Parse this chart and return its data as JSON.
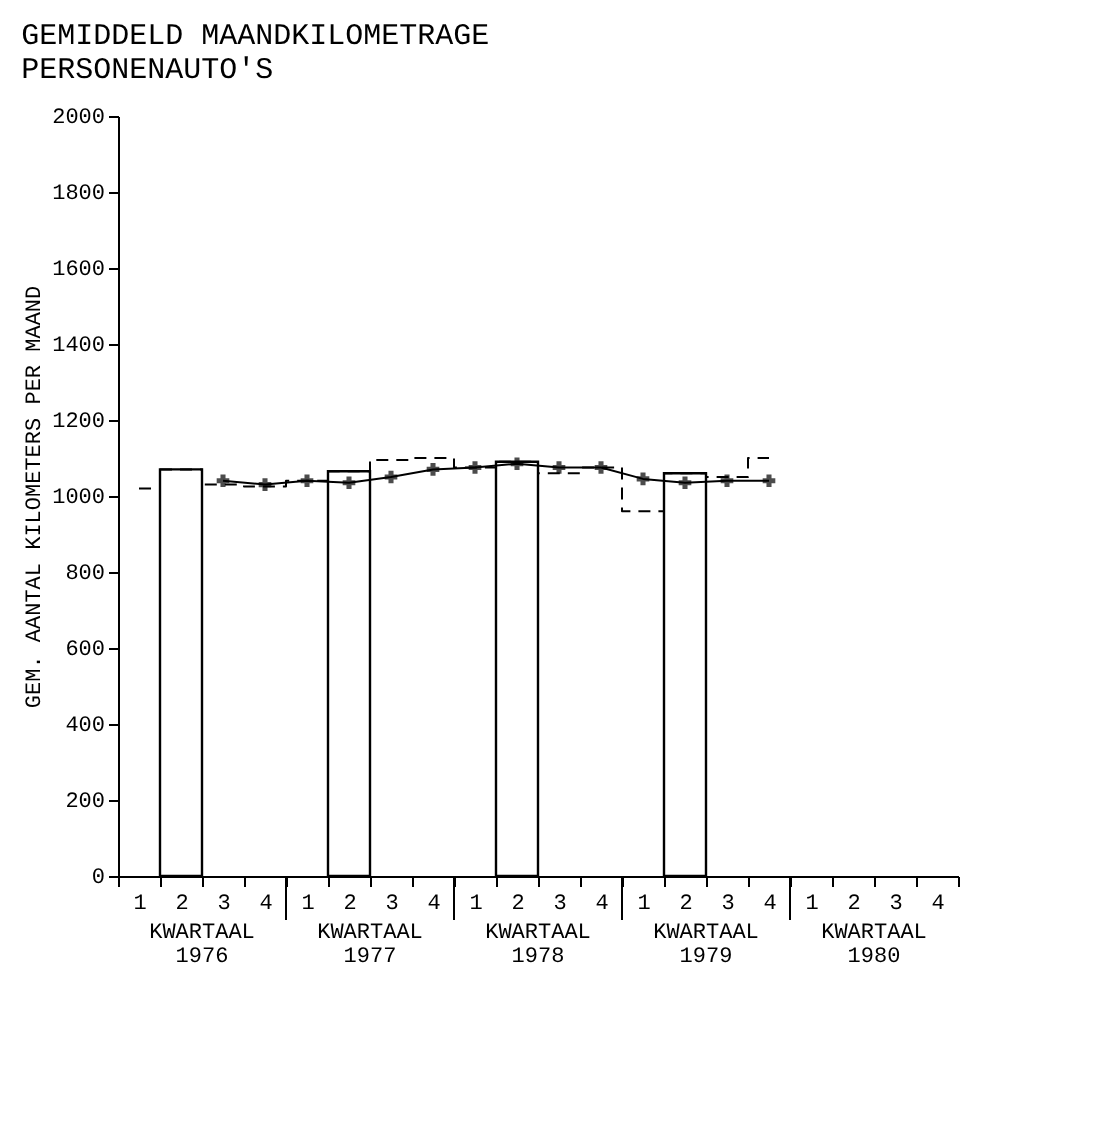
{
  "chart_data": {
    "type": "bar",
    "title": "GEMIDDELD MAANDKILOMETRAGE\nPERSONENAUTO'S",
    "ylabel": "GEM. AANTAL KILOMETERS PER MAAND",
    "categories": [
      "1",
      "2",
      "3",
      "4",
      "1",
      "2",
      "3",
      "4",
      "1",
      "2",
      "3",
      "4",
      "1",
      "2",
      "3",
      "4",
      "1",
      "2",
      "3",
      "4"
    ],
    "annotations": [
      "KWARTAAL\n1976",
      "KWARTAAL\n1977",
      "KWARTAAL\n1978",
      "KWARTAAL\n1979",
      "KWARTAAL\n1980"
    ],
    "ylim": [
      0,
      2000
    ],
    "yticks": [
      0,
      200,
      400,
      600,
      800,
      1000,
      1200,
      1400,
      1600,
      1800,
      2000
    ],
    "series": [
      {
        "color": "#ffffff",
        "values": [
          null,
          1070,
          null,
          null,
          null,
          1065,
          null,
          null,
          null,
          1090,
          null,
          null,
          null,
          1060,
          null,
          null,
          null,
          null,
          null,
          null
        ]
      },
      {
        "type": "step",
        "color": "#000000",
        "line_style": "dashed",
        "marker": "none",
        "values": [
          1020,
          1070,
          1030,
          1025,
          1040,
          1065,
          1095,
          1100,
          1075,
          1090,
          1060,
          1075,
          960,
          1060,
          1050,
          1100,
          null,
          null,
          null,
          null
        ]
      },
      {
        "type": "line",
        "color": "#000000",
        "line_style": "solid",
        "marker": "cross",
        "values": [
          null,
          null,
          1040,
          1030,
          1040,
          1035,
          1050,
          1070,
          1075,
          1085,
          1075,
          1075,
          1045,
          1035,
          1040,
          1040,
          null,
          null,
          null,
          null
        ]
      }
    ]
  }
}
